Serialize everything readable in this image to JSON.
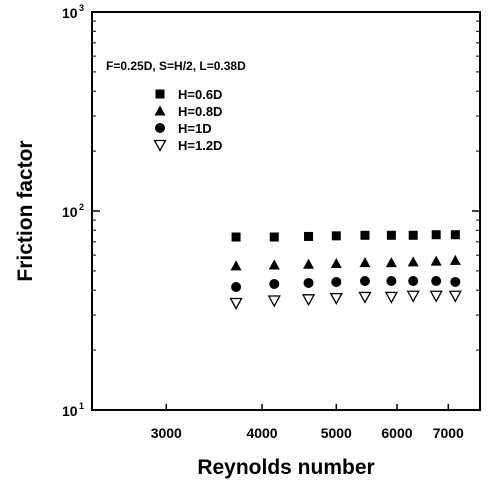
{
  "chart_data": {
    "type": "scatter",
    "xlabel": "Reynolds number",
    "ylabel": "Friction factor",
    "x_scale": "log",
    "y_scale": "log",
    "xlim": [
      2400,
      7700
    ],
    "ylim": [
      10,
      1000
    ],
    "x_ticks": [
      {
        "value": 3000,
        "label": "3000"
      },
      {
        "value": 4000,
        "label": "4000"
      },
      {
        "value": 5000,
        "label": "5000"
      },
      {
        "value": 6000,
        "label": "6000"
      },
      {
        "value": 7000,
        "label": "7000"
      }
    ],
    "y_ticks": [
      {
        "value": 10,
        "base": "10",
        "exp": "1"
      },
      {
        "value": 100,
        "base": "10",
        "exp": "2"
      },
      {
        "value": 1000,
        "base": "10",
        "exp": "3"
      }
    ],
    "annotation": "F=0.25D, S=H/2, L=0.38D",
    "legend_position": "top-left",
    "grid": false,
    "x": [
      3700,
      4150,
      4600,
      5000,
      5450,
      5900,
      6300,
      6750,
      7150
    ],
    "series": [
      {
        "name": "H=0.6D",
        "marker": "square",
        "values": [
          74,
          74,
          74.5,
          75,
          75.5,
          75.5,
          75.5,
          76,
          76
        ]
      },
      {
        "name": "H=0.8D",
        "marker": "triangle-up",
        "values": [
          53,
          53.5,
          54,
          54.5,
          55,
          55,
          55.5,
          56,
          56.5
        ]
      },
      {
        "name": "H=1D",
        "marker": "circle",
        "values": [
          41.5,
          43,
          43.5,
          44,
          44.5,
          44.5,
          44.5,
          44.5,
          44
        ]
      },
      {
        "name": "H=1.2D",
        "marker": "triangle-down-open",
        "values": [
          34.5,
          35.5,
          36,
          36.5,
          37,
          37,
          37.5,
          37.5,
          37.5
        ]
      }
    ]
  }
}
